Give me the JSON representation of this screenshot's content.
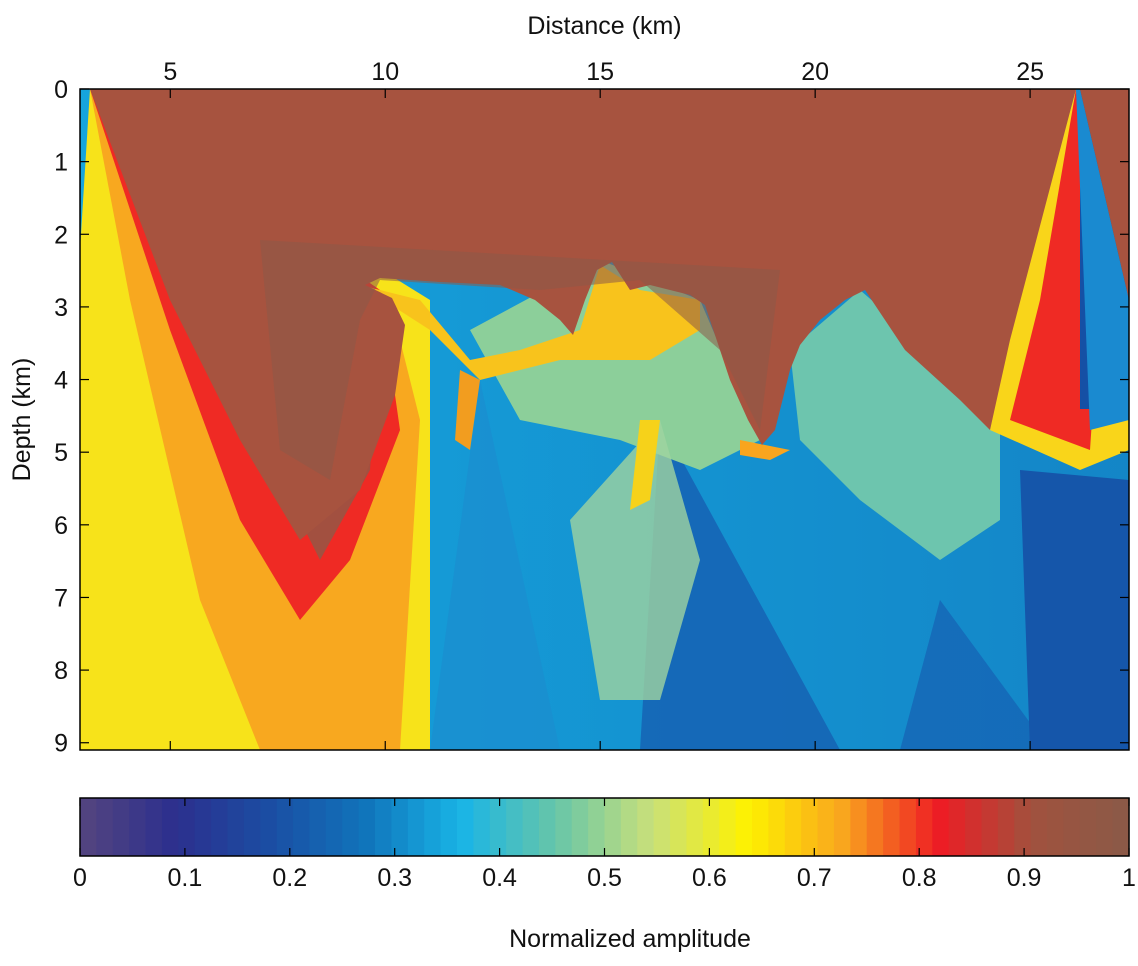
{
  "chart_data": {
    "type": "heatmap",
    "title": "",
    "xlabel": "Distance (km)",
    "ylabel": "Depth (km)",
    "x_axis_position": "top",
    "y_axis_direction": "down",
    "xlim": [
      2.9,
      27.3
    ],
    "ylim": [
      0,
      9.1
    ],
    "xticks": [
      5,
      10,
      15,
      20,
      25
    ],
    "yticks": [
      0,
      1,
      2,
      3,
      4,
      5,
      6,
      7,
      8,
      9
    ],
    "grid": false,
    "colormap": "jet-like",
    "colorbar": {
      "label": "Normalized amplitude",
      "orientation": "horizontal",
      "placement": "bottom",
      "range": [
        0,
        1
      ],
      "ticks": [
        0,
        0.1,
        0.2,
        0.3,
        0.4,
        0.5,
        0.6,
        0.7,
        0.8,
        0.9,
        1
      ],
      "tick_labels": [
        "0",
        "0.1",
        "0.2",
        "0.3",
        "0.4",
        "0.5",
        "0.6",
        "0.7",
        "0.8",
        "0.9",
        "1"
      ],
      "levels": 64,
      "colors": [
        "#55457f",
        "#2c2f8e",
        "#1b4ea3",
        "#1074bb",
        "#19b4e6",
        "#68c6a8",
        "#c9e07a",
        "#fef200",
        "#f9a51e",
        "#ee1c24",
        "#a0523e",
        "#8a5a48"
      ]
    },
    "annotations": []
  }
}
